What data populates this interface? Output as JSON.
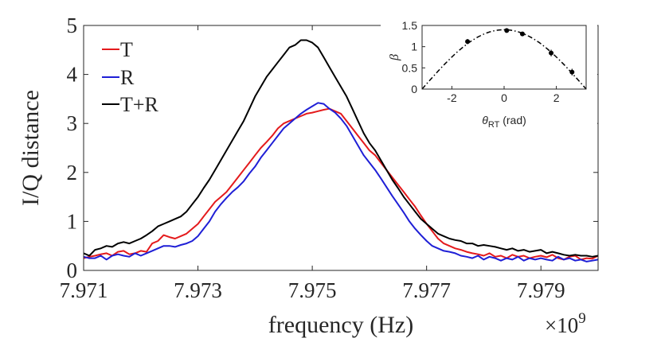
{
  "chart_data": [
    {
      "type": "line",
      "xlabel": "frequency (Hz)",
      "ylabel": "I/Q distance",
      "x_exponent_label": "×10",
      "x_exponent_power": "9",
      "xlim": [
        7.971,
        7.98
      ],
      "ylim": [
        0,
        5
      ],
      "xticks": [
        7.971,
        7.973,
        7.975,
        7.977,
        7.979
      ],
      "xtick_labels": [
        "7.971",
        "7.973",
        "7.975",
        "7.977",
        "7.979"
      ],
      "yticks": [
        0,
        1,
        2,
        3,
        4,
        5
      ],
      "ytick_labels": [
        "0",
        "1",
        "2",
        "3",
        "4",
        "5"
      ],
      "legend_position": "top-left",
      "series": [
        {
          "name": "T",
          "color": "#e41a1c",
          "x": [
            7.971,
            7.9711,
            7.9712,
            7.9713,
            7.9714,
            7.9715,
            7.9716,
            7.9717,
            7.9718,
            7.9719,
            7.972,
            7.9721,
            7.9722,
            7.9723,
            7.9724,
            7.9725,
            7.9726,
            7.9727,
            7.9728,
            7.9729,
            7.973,
            7.9731,
            7.9732,
            7.9733,
            7.9734,
            7.9735,
            7.9736,
            7.9737,
            7.9738,
            7.9739,
            7.974,
            7.9741,
            7.9742,
            7.9743,
            7.9744,
            7.9745,
            7.9746,
            7.9747,
            7.9748,
            7.9749,
            7.975,
            7.9751,
            7.9752,
            7.9753,
            7.9754,
            7.9755,
            7.9756,
            7.9757,
            7.9758,
            7.9759,
            7.976,
            7.9761,
            7.9762,
            7.9763,
            7.9764,
            7.9765,
            7.9766,
            7.9767,
            7.9768,
            7.9769,
            7.977,
            7.9771,
            7.9772,
            7.9773,
            7.9774,
            7.9775,
            7.9776,
            7.9777,
            7.9778,
            7.9779,
            7.978,
            7.9781,
            7.9782,
            7.9783,
            7.9784,
            7.9785,
            7.9786,
            7.9787,
            7.9788,
            7.9789,
            7.979,
            7.9791,
            7.9792,
            7.9793,
            7.9794,
            7.9795,
            7.9796,
            7.9797,
            7.9798,
            7.9799,
            7.98
          ],
          "values": [
            0.25,
            0.28,
            0.3,
            0.33,
            0.35,
            0.3,
            0.38,
            0.4,
            0.33,
            0.35,
            0.4,
            0.38,
            0.55,
            0.6,
            0.72,
            0.68,
            0.65,
            0.7,
            0.75,
            0.85,
            0.95,
            1.1,
            1.25,
            1.4,
            1.5,
            1.6,
            1.75,
            1.9,
            2.05,
            2.2,
            2.35,
            2.5,
            2.62,
            2.75,
            2.9,
            3.0,
            3.05,
            3.1,
            3.15,
            3.2,
            3.22,
            3.25,
            3.28,
            3.3,
            3.25,
            3.2,
            3.05,
            2.9,
            2.75,
            2.6,
            2.45,
            2.35,
            2.2,
            2.05,
            1.9,
            1.75,
            1.6,
            1.45,
            1.3,
            1.12,
            0.95,
            0.8,
            0.65,
            0.55,
            0.5,
            0.45,
            0.42,
            0.38,
            0.35,
            0.33,
            0.3,
            0.35,
            0.28,
            0.3,
            0.25,
            0.32,
            0.28,
            0.3,
            0.25,
            0.28,
            0.3,
            0.27,
            0.32,
            0.25,
            0.22,
            0.28,
            0.3,
            0.22,
            0.25,
            0.24,
            0.3
          ]
        },
        {
          "name": "R",
          "color": "#1f1fd6",
          "x": [
            7.971,
            7.9711,
            7.9712,
            7.9713,
            7.9714,
            7.9715,
            7.9716,
            7.9717,
            7.9718,
            7.9719,
            7.972,
            7.9721,
            7.9722,
            7.9723,
            7.9724,
            7.9725,
            7.9726,
            7.9727,
            7.9728,
            7.9729,
            7.973,
            7.9731,
            7.9732,
            7.9733,
            7.9734,
            7.9735,
            7.9736,
            7.9737,
            7.9738,
            7.9739,
            7.974,
            7.9741,
            7.9742,
            7.9743,
            7.9744,
            7.9745,
            7.9746,
            7.9747,
            7.9748,
            7.9749,
            7.975,
            7.9751,
            7.9752,
            7.9753,
            7.9754,
            7.9755,
            7.9756,
            7.9757,
            7.9758,
            7.9759,
            7.976,
            7.9761,
            7.9762,
            7.9763,
            7.9764,
            7.9765,
            7.9766,
            7.9767,
            7.9768,
            7.9769,
            7.977,
            7.9771,
            7.9772,
            7.9773,
            7.9774,
            7.9775,
            7.9776,
            7.9777,
            7.9778,
            7.9779,
            7.978,
            7.9781,
            7.9782,
            7.9783,
            7.9784,
            7.9785,
            7.9786,
            7.9787,
            7.9788,
            7.9789,
            7.979,
            7.9791,
            7.9792,
            7.9793,
            7.9794,
            7.9795,
            7.9796,
            7.9797,
            7.9798,
            7.9799,
            7.98
          ],
          "values": [
            0.28,
            0.25,
            0.25,
            0.3,
            0.22,
            0.3,
            0.33,
            0.3,
            0.28,
            0.35,
            0.3,
            0.35,
            0.4,
            0.45,
            0.5,
            0.5,
            0.48,
            0.52,
            0.55,
            0.6,
            0.7,
            0.85,
            1.0,
            1.2,
            1.35,
            1.48,
            1.6,
            1.7,
            1.82,
            1.98,
            2.12,
            2.3,
            2.45,
            2.6,
            2.75,
            2.9,
            3.0,
            3.1,
            3.2,
            3.28,
            3.35,
            3.42,
            3.4,
            3.3,
            3.22,
            3.1,
            2.95,
            2.75,
            2.55,
            2.35,
            2.2,
            2.05,
            1.88,
            1.7,
            1.52,
            1.35,
            1.18,
            1.0,
            0.85,
            0.72,
            0.6,
            0.5,
            0.45,
            0.4,
            0.38,
            0.35,
            0.3,
            0.28,
            0.25,
            0.3,
            0.22,
            0.28,
            0.25,
            0.2,
            0.25,
            0.22,
            0.28,
            0.2,
            0.25,
            0.22,
            0.25,
            0.22,
            0.2,
            0.28,
            0.22,
            0.25,
            0.2,
            0.22,
            0.18,
            0.2,
            0.22
          ]
        },
        {
          "name": "T+R",
          "color": "#000000",
          "x": [
            7.971,
            7.9711,
            7.9712,
            7.9713,
            7.9714,
            7.9715,
            7.9716,
            7.9717,
            7.9718,
            7.9719,
            7.972,
            7.9721,
            7.9722,
            7.9723,
            7.9724,
            7.9725,
            7.9726,
            7.9727,
            7.9728,
            7.9729,
            7.973,
            7.9731,
            7.9732,
            7.9733,
            7.9734,
            7.9735,
            7.9736,
            7.9737,
            7.9738,
            7.9739,
            7.974,
            7.9741,
            7.9742,
            7.9743,
            7.9744,
            7.9745,
            7.9746,
            7.9747,
            7.9748,
            7.9749,
            7.975,
            7.9751,
            7.9752,
            7.9753,
            7.9754,
            7.9755,
            7.9756,
            7.9757,
            7.9758,
            7.9759,
            7.976,
            7.9761,
            7.9762,
            7.9763,
            7.9764,
            7.9765,
            7.9766,
            7.9767,
            7.9768,
            7.9769,
            7.977,
            7.9771,
            7.9772,
            7.9773,
            7.9774,
            7.9775,
            7.9776,
            7.9777,
            7.9778,
            7.9779,
            7.978,
            7.9781,
            7.9782,
            7.9783,
            7.9784,
            7.9785,
            7.9786,
            7.9787,
            7.9788,
            7.9789,
            7.979,
            7.9791,
            7.9792,
            7.9793,
            7.9794,
            7.9795,
            7.9796,
            7.9797,
            7.9798,
            7.9799,
            7.98
          ],
          "values": [
            0.35,
            0.3,
            0.42,
            0.45,
            0.5,
            0.48,
            0.55,
            0.58,
            0.55,
            0.6,
            0.65,
            0.72,
            0.8,
            0.9,
            0.95,
            1.0,
            1.05,
            1.1,
            1.2,
            1.35,
            1.5,
            1.68,
            1.85,
            2.05,
            2.25,
            2.45,
            2.65,
            2.85,
            3.05,
            3.3,
            3.55,
            3.75,
            3.95,
            4.1,
            4.25,
            4.4,
            4.55,
            4.6,
            4.7,
            4.7,
            4.65,
            4.55,
            4.35,
            4.15,
            3.95,
            3.75,
            3.55,
            3.3,
            3.05,
            2.8,
            2.6,
            2.45,
            2.25,
            2.05,
            1.85,
            1.68,
            1.5,
            1.35,
            1.2,
            1.05,
            0.95,
            0.85,
            0.75,
            0.7,
            0.65,
            0.62,
            0.6,
            0.55,
            0.55,
            0.5,
            0.52,
            0.5,
            0.48,
            0.45,
            0.42,
            0.45,
            0.4,
            0.42,
            0.38,
            0.4,
            0.42,
            0.35,
            0.38,
            0.35,
            0.32,
            0.3,
            0.32,
            0.3,
            0.3,
            0.28,
            0.3
          ]
        }
      ]
    },
    {
      "type": "scatter",
      "xlabel_symbol": "θ",
      "xlabel_sub": "RT",
      "xlabel_unit": " (rad)",
      "ylabel": "β",
      "xlim": [
        -3.14,
        3.14
      ],
      "ylim": [
        0,
        1.5
      ],
      "xticks": [
        -2,
        0,
        2
      ],
      "xtick_labels": [
        "-2",
        "0",
        "2"
      ],
      "yticks": [
        0,
        0.5,
        1,
        1.5
      ],
      "ytick_labels": [
        "0",
        "0.5",
        "1",
        "1.5"
      ],
      "points": [
        {
          "x": -1.4,
          "y": 1.12,
          "err": 0.06
        },
        {
          "x": 0.1,
          "y": 1.38,
          "err": 0.04
        },
        {
          "x": 0.7,
          "y": 1.3,
          "err": 0.04
        },
        {
          "x": 1.8,
          "y": 0.85,
          "err": 0.08
        },
        {
          "x": 2.6,
          "y": 0.4,
          "err": 0.08
        }
      ],
      "fit": {
        "type": "cosine",
        "amplitude": 1.4,
        "style": "dash-dot",
        "color": "#000000"
      }
    }
  ]
}
